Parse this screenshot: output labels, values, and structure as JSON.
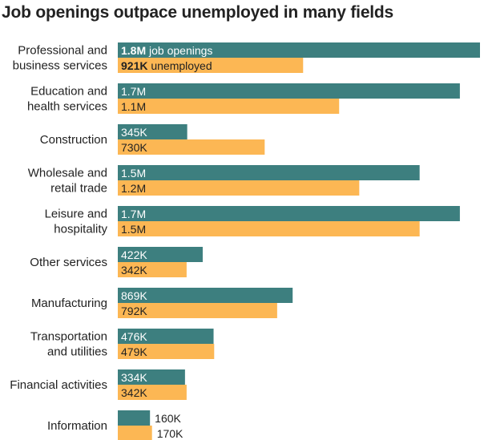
{
  "title": "Job openings outpace unemployed in many fields",
  "colors": {
    "openings": "#3d7f7f",
    "unemployed": "#fcb754"
  },
  "chart_data": {
    "type": "bar",
    "orientation": "horizontal",
    "title": "Job openings outpace unemployed in many fields",
    "categories": [
      [
        "Professional and",
        "business services"
      ],
      [
        "Education and",
        "health services"
      ],
      [
        "Construction"
      ],
      [
        "Wholesale and",
        "retail trade"
      ],
      [
        "Leisure and",
        "hospitality"
      ],
      [
        "Other services"
      ],
      [
        "Manufacturing"
      ],
      [
        "Transportation",
        "and utilities"
      ],
      [
        "Financial activities"
      ],
      [
        "Information"
      ]
    ],
    "series": [
      {
        "name": "job openings",
        "values": [
          1800000,
          1700000,
          345000,
          1500000,
          1700000,
          422000,
          869000,
          476000,
          334000,
          160000
        ],
        "labels": [
          "1.8M",
          "1.7M",
          "345K",
          "1.5M",
          "1.7M",
          "422K",
          "869K",
          "476K",
          "334K",
          "160K"
        ]
      },
      {
        "name": "unemployed",
        "values": [
          921000,
          1100000,
          730000,
          1200000,
          1500000,
          342000,
          792000,
          479000,
          342000,
          170000
        ],
        "labels": [
          "921K",
          "1.1M",
          "730K",
          "1.2M",
          "1.5M",
          "342K",
          "792K",
          "479K",
          "342K",
          "170K"
        ]
      }
    ],
    "xlim": [
      0,
      1800000
    ],
    "legend": "inline-first-row",
    "grid": false
  }
}
